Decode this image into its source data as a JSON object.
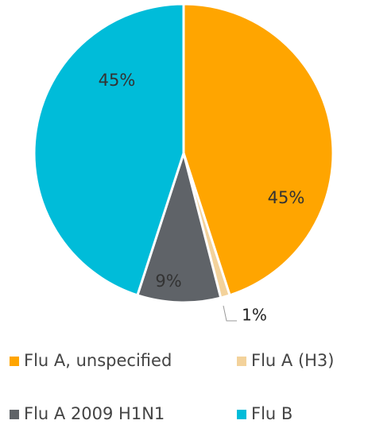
{
  "chart_data": {
    "type": "pie",
    "categories": [
      "Flu A, unspecified",
      "Flu A (H3)",
      "Flu A 2009 H1N1",
      "Flu B"
    ],
    "values": [
      45,
      1,
      9,
      45
    ],
    "value_labels": [
      "45%",
      "1%",
      "9%",
      "45%"
    ],
    "colors": [
      "#ffa500",
      "#f3d29b",
      "#5f6368",
      "#00bcd9"
    ]
  }
}
